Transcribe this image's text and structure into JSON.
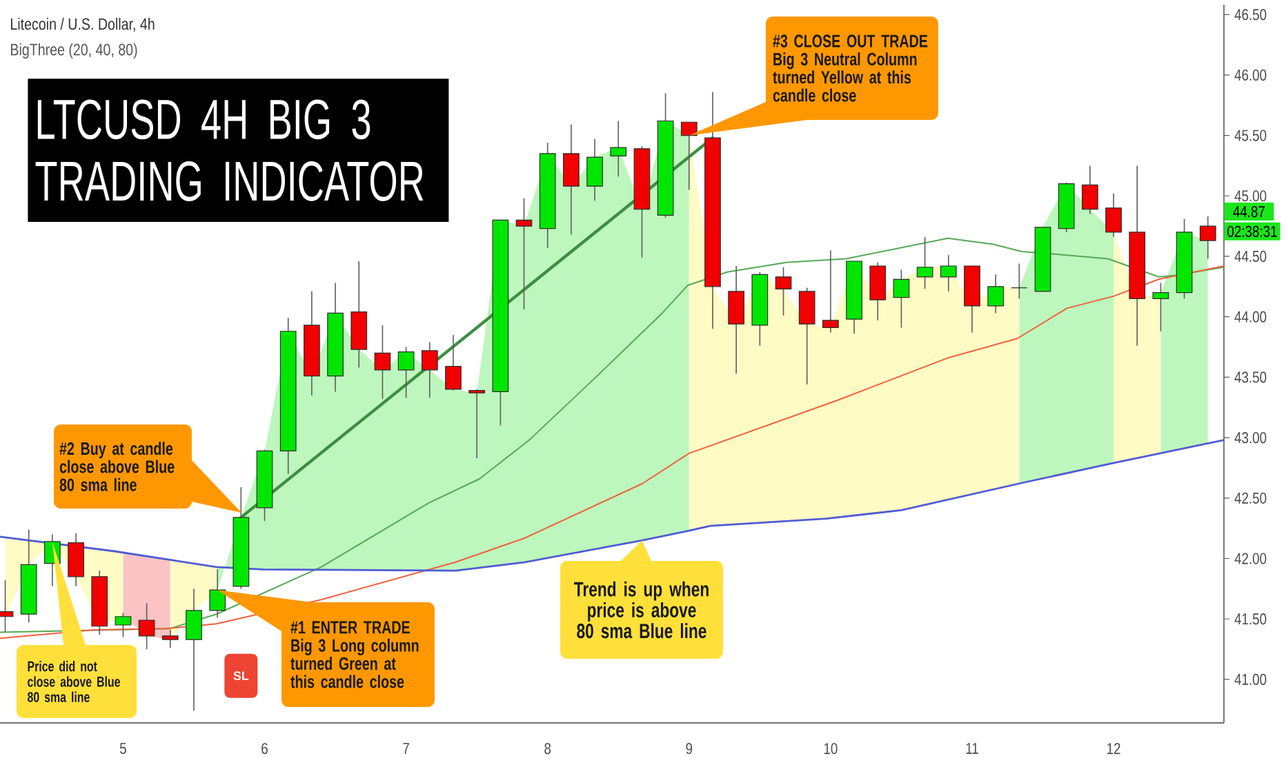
{
  "chart_data": {
    "type": "candlestick",
    "title": "LTCUSD 4H BIG 3 TRADING INDICATOR",
    "subtitle": "Litecoin / U.S. Dollar, 4h",
    "x": [
      4.1667,
      4.3333,
      4.5,
      4.6667,
      4.8333,
      5,
      5.1667,
      5.3333,
      5.5,
      5.6667,
      5.8333,
      6,
      6.1667,
      6.3333,
      6.5,
      6.6667,
      6.8333,
      7,
      7.1667,
      7.3333,
      7.5,
      7.6667,
      7.8333,
      8,
      8.1667,
      8.3333,
      8.5,
      8.6667,
      8.8333,
      9,
      9.1667,
      9.3333,
      9.5,
      9.6667,
      9.8333,
      10,
      10.1667,
      10.3333,
      10.5,
      10.6667,
      10.8333,
      11,
      11.1667,
      11.3333,
      11.5,
      11.6667,
      11.8333,
      12,
      12.1667,
      12.3333,
      12.5,
      12.6667
    ],
    "ohlc": [
      [
        41.56,
        41.82,
        41.39,
        41.52
      ],
      [
        41.54,
        42.24,
        41.47,
        41.95
      ],
      [
        41.96,
        42.2,
        41.77,
        42.14
      ],
      [
        42.13,
        42.21,
        41.77,
        41.85
      ],
      [
        41.85,
        41.9,
        41.37,
        41.44
      ],
      [
        41.45,
        41.55,
        41.35,
        41.52
      ],
      [
        41.49,
        41.63,
        41.25,
        41.36
      ],
      [
        41.36,
        41.41,
        41.26,
        41.33
      ],
      [
        41.33,
        41.75,
        40.74,
        41.57
      ],
      [
        41.57,
        41.91,
        41.51,
        41.74
      ],
      [
        41.77,
        42.59,
        41.75,
        42.34
      ],
      [
        42.42,
        42.9,
        42.31,
        42.89
      ],
      [
        42.89,
        43.99,
        42.7,
        43.88
      ],
      [
        43.93,
        44.21,
        43.35,
        43.51
      ],
      [
        43.51,
        44.28,
        43.38,
        44.03
      ],
      [
        44.04,
        44.46,
        43.58,
        43.73
      ],
      [
        43.7,
        43.93,
        43.32,
        43.56
      ],
      [
        43.56,
        43.75,
        43.33,
        43.71
      ],
      [
        43.72,
        43.79,
        43.33,
        43.56
      ],
      [
        43.59,
        43.85,
        43.39,
        43.4
      ],
      [
        43.39,
        43.4,
        42.83,
        43.37
      ],
      [
        43.38,
        44.8,
        43.1,
        44.8
      ],
      [
        44.8,
        44.98,
        44.06,
        44.75
      ],
      [
        44.73,
        45.44,
        44.57,
        45.35
      ],
      [
        45.35,
        45.59,
        44.68,
        45.08
      ],
      [
        45.08,
        45.47,
        44.96,
        45.32
      ],
      [
        45.33,
        45.62,
        45.16,
        45.4
      ],
      [
        45.39,
        45.41,
        44.49,
        44.89
      ],
      [
        44.84,
        45.85,
        44.82,
        45.62
      ],
      [
        45.61,
        45.61,
        45.05,
        45.5
      ],
      [
        45.48,
        45.86,
        43.9,
        44.25
      ],
      [
        44.21,
        44.42,
        43.53,
        43.94
      ],
      [
        43.93,
        44.37,
        43.76,
        44.35
      ],
      [
        44.33,
        44.41,
        44.01,
        44.23
      ],
      [
        44.21,
        44.24,
        43.44,
        43.94
      ],
      [
        43.97,
        44.55,
        43.87,
        43.91
      ],
      [
        43.98,
        44.46,
        43.86,
        44.46
      ],
      [
        44.42,
        44.45,
        43.97,
        44.14
      ],
      [
        44.16,
        44.39,
        43.91,
        44.31
      ],
      [
        44.33,
        44.66,
        44.23,
        44.41
      ],
      [
        44.33,
        44.51,
        44.21,
        44.42
      ],
      [
        44.42,
        44.42,
        43.87,
        44.09
      ],
      [
        44.09,
        44.35,
        44.03,
        44.25
      ],
      [
        44.24,
        44.44,
        44.15,
        44.24
      ],
      [
        44.21,
        44.74,
        44.21,
        44.74
      ],
      [
        44.73,
        45.11,
        44.7,
        45.1
      ],
      [
        45.09,
        45.25,
        44.85,
        44.89
      ],
      [
        44.9,
        45.02,
        44.66,
        44.7
      ],
      [
        44.7,
        45.25,
        43.76,
        44.15
      ],
      [
        44.15,
        44.28,
        43.88,
        44.2
      ],
      [
        44.2,
        44.81,
        44.15,
        44.7
      ],
      [
        44.75,
        44.83,
        44.48,
        44.63
      ]
    ],
    "colors": [
      "#f20000",
      "#00e600",
      "#00e600",
      "#f20000",
      "#f20000",
      "#00e600",
      "#f20000",
      "#f20000",
      "#00e600",
      "#00e600",
      "#00e600",
      "#00e600",
      "#00e600",
      "#f20000",
      "#00e600",
      "#f20000",
      "#f20000",
      "#00e600",
      "#f20000",
      "#f20000",
      "#f20000",
      "#00e600",
      "#f20000",
      "#00e600",
      "#f20000",
      "#00e600",
      "#00e600",
      "#f20000",
      "#00e600",
      "#f20000",
      "#f20000",
      "#f20000",
      "#00e600",
      "#f20000",
      "#f20000",
      "#f20000",
      "#00e600",
      "#f20000",
      "#00e600",
      "#00e600",
      "#00e600",
      "#f20000",
      "#00e600",
      "#2e2e2e",
      "#00e600",
      "#00e600",
      "#f20000",
      "#f20000",
      "#f20000",
      "#00e600",
      "#00e600",
      "#f20000"
    ],
    "series": [
      {
        "type": "line",
        "color": "#55a855",
        "x": [
          4.13,
          5.33,
          5.66,
          6.4,
          7.16,
          7.52,
          7.87,
          8.35,
          8.81,
          8.99,
          9.27,
          9.69,
          10.11,
          10.83,
          11.15,
          11.35,
          11.57,
          11.96,
          12.32,
          12.42,
          12.78
        ],
        "values": [
          41.39,
          41.42,
          41.54,
          41.93,
          42.46,
          42.66,
          42.98,
          43.51,
          44.03,
          44.26,
          44.37,
          44.45,
          44.48,
          44.65,
          44.6,
          44.54,
          44.52,
          44.48,
          44.33,
          44.34,
          44.41
        ]
      },
      {
        "type": "line",
        "color": "#f0603c",
        "x": [
          4.13,
          4.8,
          5.3,
          5.66,
          6.4,
          7.35,
          7.84,
          8.67,
          9,
          10.05,
          10.83,
          11.32,
          11.67,
          12,
          12.32,
          12.78
        ],
        "values": [
          41.34,
          41.41,
          41.42,
          41.46,
          41.66,
          41.97,
          42.17,
          42.62,
          42.87,
          43.31,
          43.66,
          43.82,
          44.07,
          44.17,
          44.31,
          44.42
        ]
      },
      {
        "type": "line",
        "color": "#4f5bd5",
        "x": [
          4.13,
          4.94,
          5.66,
          5.99,
          7.35,
          7.84,
          8.67,
          9,
          9.15,
          9.97,
          10.5,
          11.37,
          12,
          12.78
        ],
        "values": [
          42.18,
          42.06,
          41.93,
          41.91,
          41.9,
          41.97,
          42.15,
          42.23,
          42.27,
          42.33,
          42.4,
          42.63,
          42.79,
          42.98
        ]
      },
      {
        "type": "line",
        "color": "#3e8e41",
        "x": [
          5.8333,
          9.1667
        ],
        "values": [
          42.34,
          45.48
        ]
      }
    ],
    "bands": [
      {
        "axis": "x",
        "from": 4.1667,
        "to": 5,
        "color": "#fffbc4"
      },
      {
        "axis": "x",
        "from": 5,
        "to": 5.3333,
        "color": "#fbc3c3"
      },
      {
        "axis": "x",
        "from": 5.3333,
        "to": 5.6667,
        "color": "#fffbc4"
      },
      {
        "axis": "x",
        "from": 5.6667,
        "to": 9,
        "color": "#bdf7bd"
      },
      {
        "axis": "x",
        "from": 9,
        "to": 11.3333,
        "color": "#fffbc4"
      },
      {
        "axis": "x",
        "from": 11.3333,
        "to": 12,
        "color": "#bdf7bd"
      },
      {
        "axis": "x",
        "from": 12,
        "to": 12.3333,
        "color": "#fffbc4"
      },
      {
        "axis": "x",
        "from": 12.3333,
        "to": 12.6667,
        "color": "#bdf7bd"
      }
    ],
    "annotations": [
      {
        "text": "#3 CLOSE OUT TRADE Big 3 Neutral Column turned Yellow at this candle close",
        "x": 9,
        "y": 45.5
      },
      "#2 Buy at candle close above Blue 80 sma line",
      {
        "text": "#1 ENTER TRADE Big 3 Long column turned Green at this candle close",
        "x": 5.6667,
        "y": 41.74
      },
      {
        "text": "Price did not close above Blue 80 sma line",
        "x": 4.5,
        "y": 42.14
      },
      {
        "text": "Trend is up when price is above 80 sma Blue line",
        "x": 8.6667,
        "y": 42.15
      },
      {
        "text": "SL",
        "x": 5.8333,
        "y": 41.03
      },
      "BigThree (20, 40, 80)",
      {
        "text": "44.87",
        "y": 44.87
      },
      "02:38:31"
    ],
    "xlim": [
      4.13,
      12.78
    ],
    "xticks": [
      5,
      6,
      7,
      8,
      9,
      10,
      11,
      12
    ],
    "ylim": [
      40.64,
      46.58
    ],
    "yticks": [
      {
        "value": 41,
        "label": "41.00"
      },
      {
        "value": 41.5,
        "label": "41.50"
      },
      {
        "value": 42,
        "label": "42.00"
      },
      {
        "value": 42.5,
        "label": "42.50"
      },
      {
        "value": 43,
        "label": "43.00"
      },
      {
        "value": 43.5,
        "label": "43.50"
      },
      {
        "value": 44,
        "label": "44.00"
      },
      {
        "value": 44.5,
        "label": "44.50"
      },
      {
        "value": 45,
        "label": "45.00"
      },
      {
        "value": 45.5,
        "label": "45.50"
      },
      {
        "value": 46,
        "label": "46.00"
      },
      {
        "value": 46.5,
        "label": "46.50"
      }
    ]
  }
}
